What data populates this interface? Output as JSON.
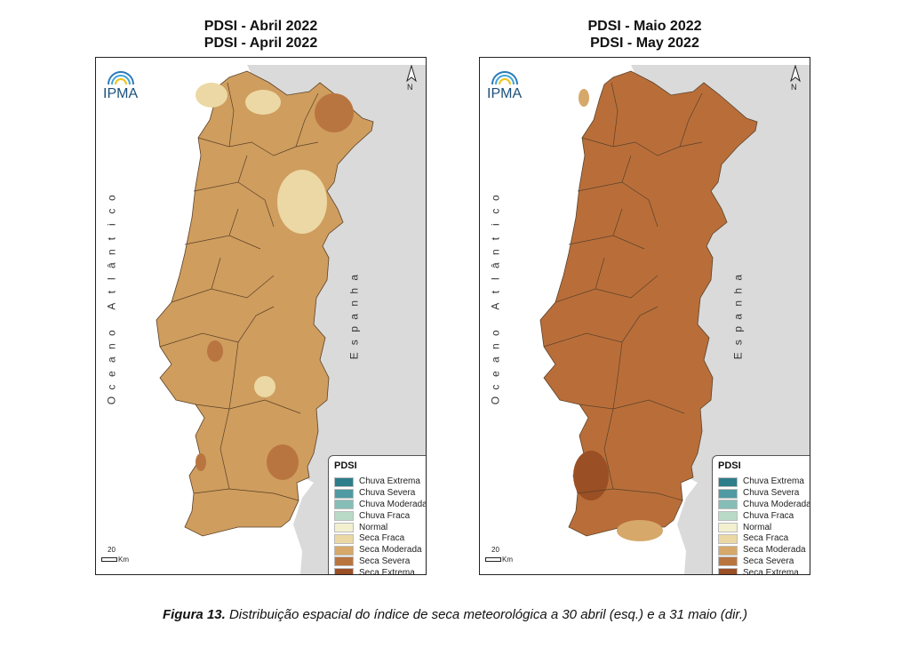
{
  "maps": [
    {
      "title_line1": "PDSI - Abril 2022",
      "title_line2": "PDSI - April 2022",
      "fill": "#cf9d5e"
    },
    {
      "title_line1": "PDSI - Maio 2022",
      "title_line2": "PDSI - May 2022",
      "fill": "#b96e3a"
    }
  ],
  "map_labels": {
    "logo": "IPMA",
    "ocean": "Oceano Atlântico",
    "spain": "Espanha",
    "north": "N",
    "scale_value": "20",
    "scale_unit": "Km"
  },
  "legend": {
    "title": "PDSI",
    "items": [
      {
        "label": "Chuva Extrema",
        "color": "#2e7d8a"
      },
      {
        "label": "Chuva Severa",
        "color": "#4f9aa3"
      },
      {
        "label": "Chuva Moderada",
        "color": "#86bdb6"
      },
      {
        "label": "Chuva Fraca",
        "color": "#b8dac7"
      },
      {
        "label": "Normal",
        "color": "#f2f0cf"
      },
      {
        "label": "Seca Fraca",
        "color": "#ecd8a4"
      },
      {
        "label": "Seca Moderada",
        "color": "#d6a86a"
      },
      {
        "label": "Seca Severa",
        "color": "#b97540"
      },
      {
        "label": "Seca Extrema",
        "color": "#9a4f24"
      }
    ]
  },
  "colors": {
    "spain": "#dadada",
    "border": "#4a3520"
  },
  "caption": {
    "label": "Figura 13.",
    "text": " Distribuição espacial do índice de seca meteorológica a 30 abril (esq.) e a 31 maio (dir.)"
  }
}
